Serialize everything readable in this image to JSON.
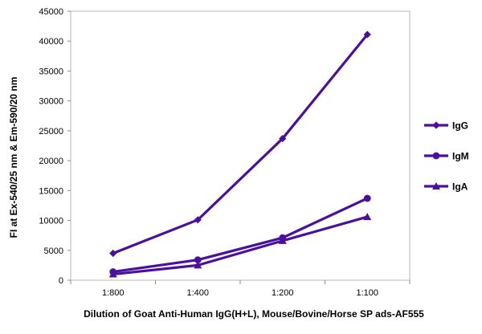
{
  "chart_data": {
    "type": "line",
    "categories": [
      "1:800",
      "1:400",
      "1:200",
      "1:100"
    ],
    "series": [
      {
        "name": "IgG",
        "marker": "diamond",
        "values": [
          4500,
          10100,
          23700,
          41100
        ]
      },
      {
        "name": "IgM",
        "marker": "circle",
        "values": [
          1400,
          3400,
          7100,
          13700
        ]
      },
      {
        "name": "IgA",
        "marker": "triangle",
        "values": [
          1000,
          2500,
          6600,
          10600
        ]
      }
    ],
    "xlabel": "Dilution of Goat Anti-Human IgG(H+L), Mouse/Bovine/Horse SP ads-AF555",
    "ylabel": "FI at Ex-540/25 nm & Em-590/20 nm",
    "ylim": [
      0,
      45000
    ],
    "yticks": [
      "0",
      "5000",
      "10000",
      "15000",
      "20000",
      "25000",
      "30000",
      "35000",
      "40000",
      "45000"
    ],
    "grid": false,
    "legend": "right",
    "series_color": "#4b0fa0"
  }
}
